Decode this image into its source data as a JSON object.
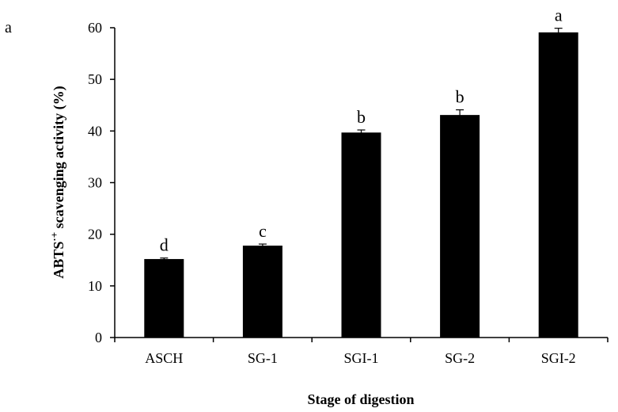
{
  "panel_label": "a",
  "chart_data": {
    "type": "bar",
    "title": "",
    "xlabel": "Stage of digestion",
    "ylabel": "ABTS·+ scavenging activity (%)",
    "ylabel_parts": {
      "pre": "ABTS",
      "sup": "·+",
      "post": " scavenging activity (%)"
    },
    "ylim": [
      0,
      60
    ],
    "yticks": [
      0,
      10,
      20,
      30,
      40,
      50,
      60
    ],
    "grid": false,
    "categories": [
      "ASCH",
      "SG-1",
      "SGI-1",
      "SG-2",
      "SGI-2"
    ],
    "values": [
      15.2,
      17.8,
      39.7,
      43.1,
      59.1
    ],
    "errors": [
      0.2,
      0.3,
      0.5,
      1.0,
      0.8
    ],
    "significance": [
      "d",
      "c",
      "b",
      "b",
      "a"
    ],
    "bar_color": "#000000"
  }
}
